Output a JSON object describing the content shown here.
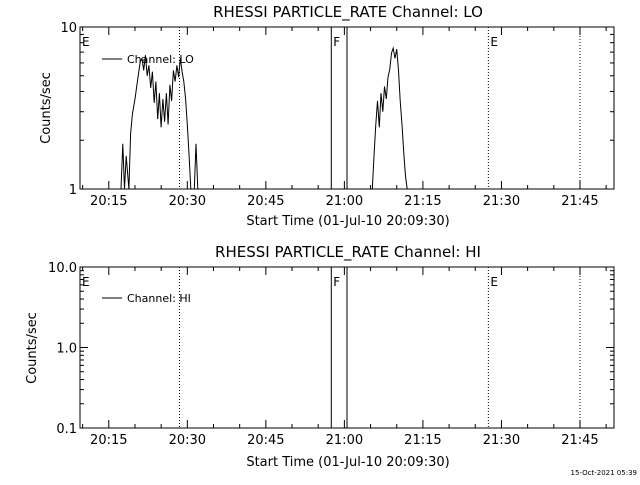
{
  "footer": {
    "timestamp": "15-Oct-2021 05:39"
  },
  "chart_data": [
    {
      "type": "line",
      "title": "RHESSI PARTICLE_RATE Channel: LO",
      "xlabel": "Start Time (01-Jul-10 20:09:30)",
      "ylabel": "Counts/sec",
      "yscale": "log",
      "ylim": [
        1,
        10
      ],
      "xlim": [
        "20:09:30",
        "21:51:30"
      ],
      "xticks": [
        "20:15",
        "20:30",
        "20:45",
        "21:00",
        "21:15",
        "21:30",
        "21:45"
      ],
      "yticks": [
        "1",
        "10"
      ],
      "legend": {
        "label": "Channel: LO",
        "position": "top-left"
      },
      "markers": [
        {
          "label": "E",
          "time": "20:09:30",
          "style": "dotted"
        },
        {
          "label": "",
          "time": "20:28:30",
          "style": "dotted"
        },
        {
          "label": "F",
          "time": "20:57:30",
          "style": "solid"
        },
        {
          "label": "",
          "time": "21:00:30",
          "style": "solid"
        },
        {
          "label": "E",
          "time": "21:27:30",
          "style": "dotted"
        },
        {
          "label": "",
          "time": "21:45:00",
          "style": "dotted"
        }
      ],
      "series": [
        {
          "segments": [
            [
              [
                "20:17:20",
                1
              ],
              [
                "20:17:40",
                1.9
              ],
              [
                "20:18:00",
                1
              ],
              [
                "20:18:20",
                1.6
              ],
              [
                "20:18:50",
                1
              ],
              [
                "20:19:10",
                2.2
              ],
              [
                "20:19:30",
                2.9
              ],
              [
                "20:20:00",
                3.6
              ],
              [
                "20:20:30",
                4.7
              ],
              [
                "20:21:00",
                6.1
              ],
              [
                "20:21:20",
                6.4
              ],
              [
                "20:21:40",
                5.4
              ],
              [
                "20:22:00",
                6.7
              ],
              [
                "20:22:20",
                5.0
              ],
              [
                "20:22:40",
                5.8
              ],
              [
                "20:23:00",
                4.2
              ],
              [
                "20:23:20",
                5.3
              ],
              [
                "20:23:40",
                3.4
              ],
              [
                "20:24:00",
                4.6
              ],
              [
                "20:24:20",
                2.7
              ],
              [
                "20:24:40",
                3.9
              ],
              [
                "20:25:00",
                2.4
              ],
              [
                "20:25:20",
                3.6
              ],
              [
                "20:25:40",
                2.6
              ],
              [
                "20:26:00",
                3.9
              ],
              [
                "20:26:20",
                2.5
              ],
              [
                "20:26:40",
                4.4
              ],
              [
                "20:27:00",
                3.5
              ],
              [
                "20:27:20",
                5.4
              ],
              [
                "20:27:40",
                4.6
              ],
              [
                "20:28:00",
                5.8
              ],
              [
                "20:28:20",
                4.9
              ],
              [
                "20:28:40",
                6.4
              ],
              [
                "20:29:00",
                5.3
              ],
              [
                "20:29:20",
                4.6
              ],
              [
                "20:29:40",
                3.6
              ],
              [
                "20:30:00",
                2.5
              ],
              [
                "20:30:20",
                1.6
              ],
              [
                "20:30:40",
                1
              ]
            ],
            [
              [
                "20:31:20",
                1
              ],
              [
                "20:31:40",
                1.9
              ],
              [
                "20:32:00",
                1
              ]
            ],
            [
              [
                "21:05:20",
                1
              ],
              [
                "21:05:40",
                1.6
              ],
              [
                "21:06:00",
                2.5
              ],
              [
                "21:06:20",
                3.5
              ],
              [
                "21:06:40",
                2.4
              ],
              [
                "21:07:00",
                3.9
              ],
              [
                "21:07:20",
                3.0
              ],
              [
                "21:07:40",
                4.3
              ],
              [
                "21:08:00",
                3.6
              ],
              [
                "21:08:20",
                4.9
              ],
              [
                "21:08:40",
                5.5
              ],
              [
                "21:09:00",
                6.9
              ],
              [
                "21:09:20",
                7.4
              ],
              [
                "21:09:40",
                6.4
              ],
              [
                "21:10:00",
                7.3
              ],
              [
                "21:10:20",
                5.4
              ],
              [
                "21:10:40",
                3.5
              ],
              [
                "21:11:00",
                2.5
              ],
              [
                "21:11:20",
                1.7
              ],
              [
                "21:11:40",
                1.2
              ],
              [
                "21:12:00",
                1
              ]
            ]
          ]
        }
      ]
    },
    {
      "type": "line",
      "title": "RHESSI PARTICLE_RATE Channel: HI",
      "xlabel": "Start Time (01-Jul-10 20:09:30)",
      "ylabel": "Counts/sec",
      "yscale": "log",
      "ylim": [
        0.1,
        10
      ],
      "xlim": [
        "20:09:30",
        "21:51:30"
      ],
      "xticks": [
        "20:15",
        "20:30",
        "20:45",
        "21:00",
        "21:15",
        "21:30",
        "21:45"
      ],
      "yticks": [
        "0.1",
        "1.0",
        "10.0"
      ],
      "legend": {
        "label": "Channel: HI",
        "position": "top-left"
      },
      "markers": [
        {
          "label": "E",
          "time": "20:09:30",
          "style": "dotted"
        },
        {
          "label": "",
          "time": "20:28:30",
          "style": "dotted"
        },
        {
          "label": "F",
          "time": "20:57:30",
          "style": "solid"
        },
        {
          "label": "",
          "time": "21:00:30",
          "style": "solid"
        },
        {
          "label": "E",
          "time": "21:27:30",
          "style": "dotted"
        },
        {
          "label": "",
          "time": "21:45:00",
          "style": "dotted"
        }
      ],
      "series": [
        {
          "segments": []
        }
      ]
    }
  ]
}
